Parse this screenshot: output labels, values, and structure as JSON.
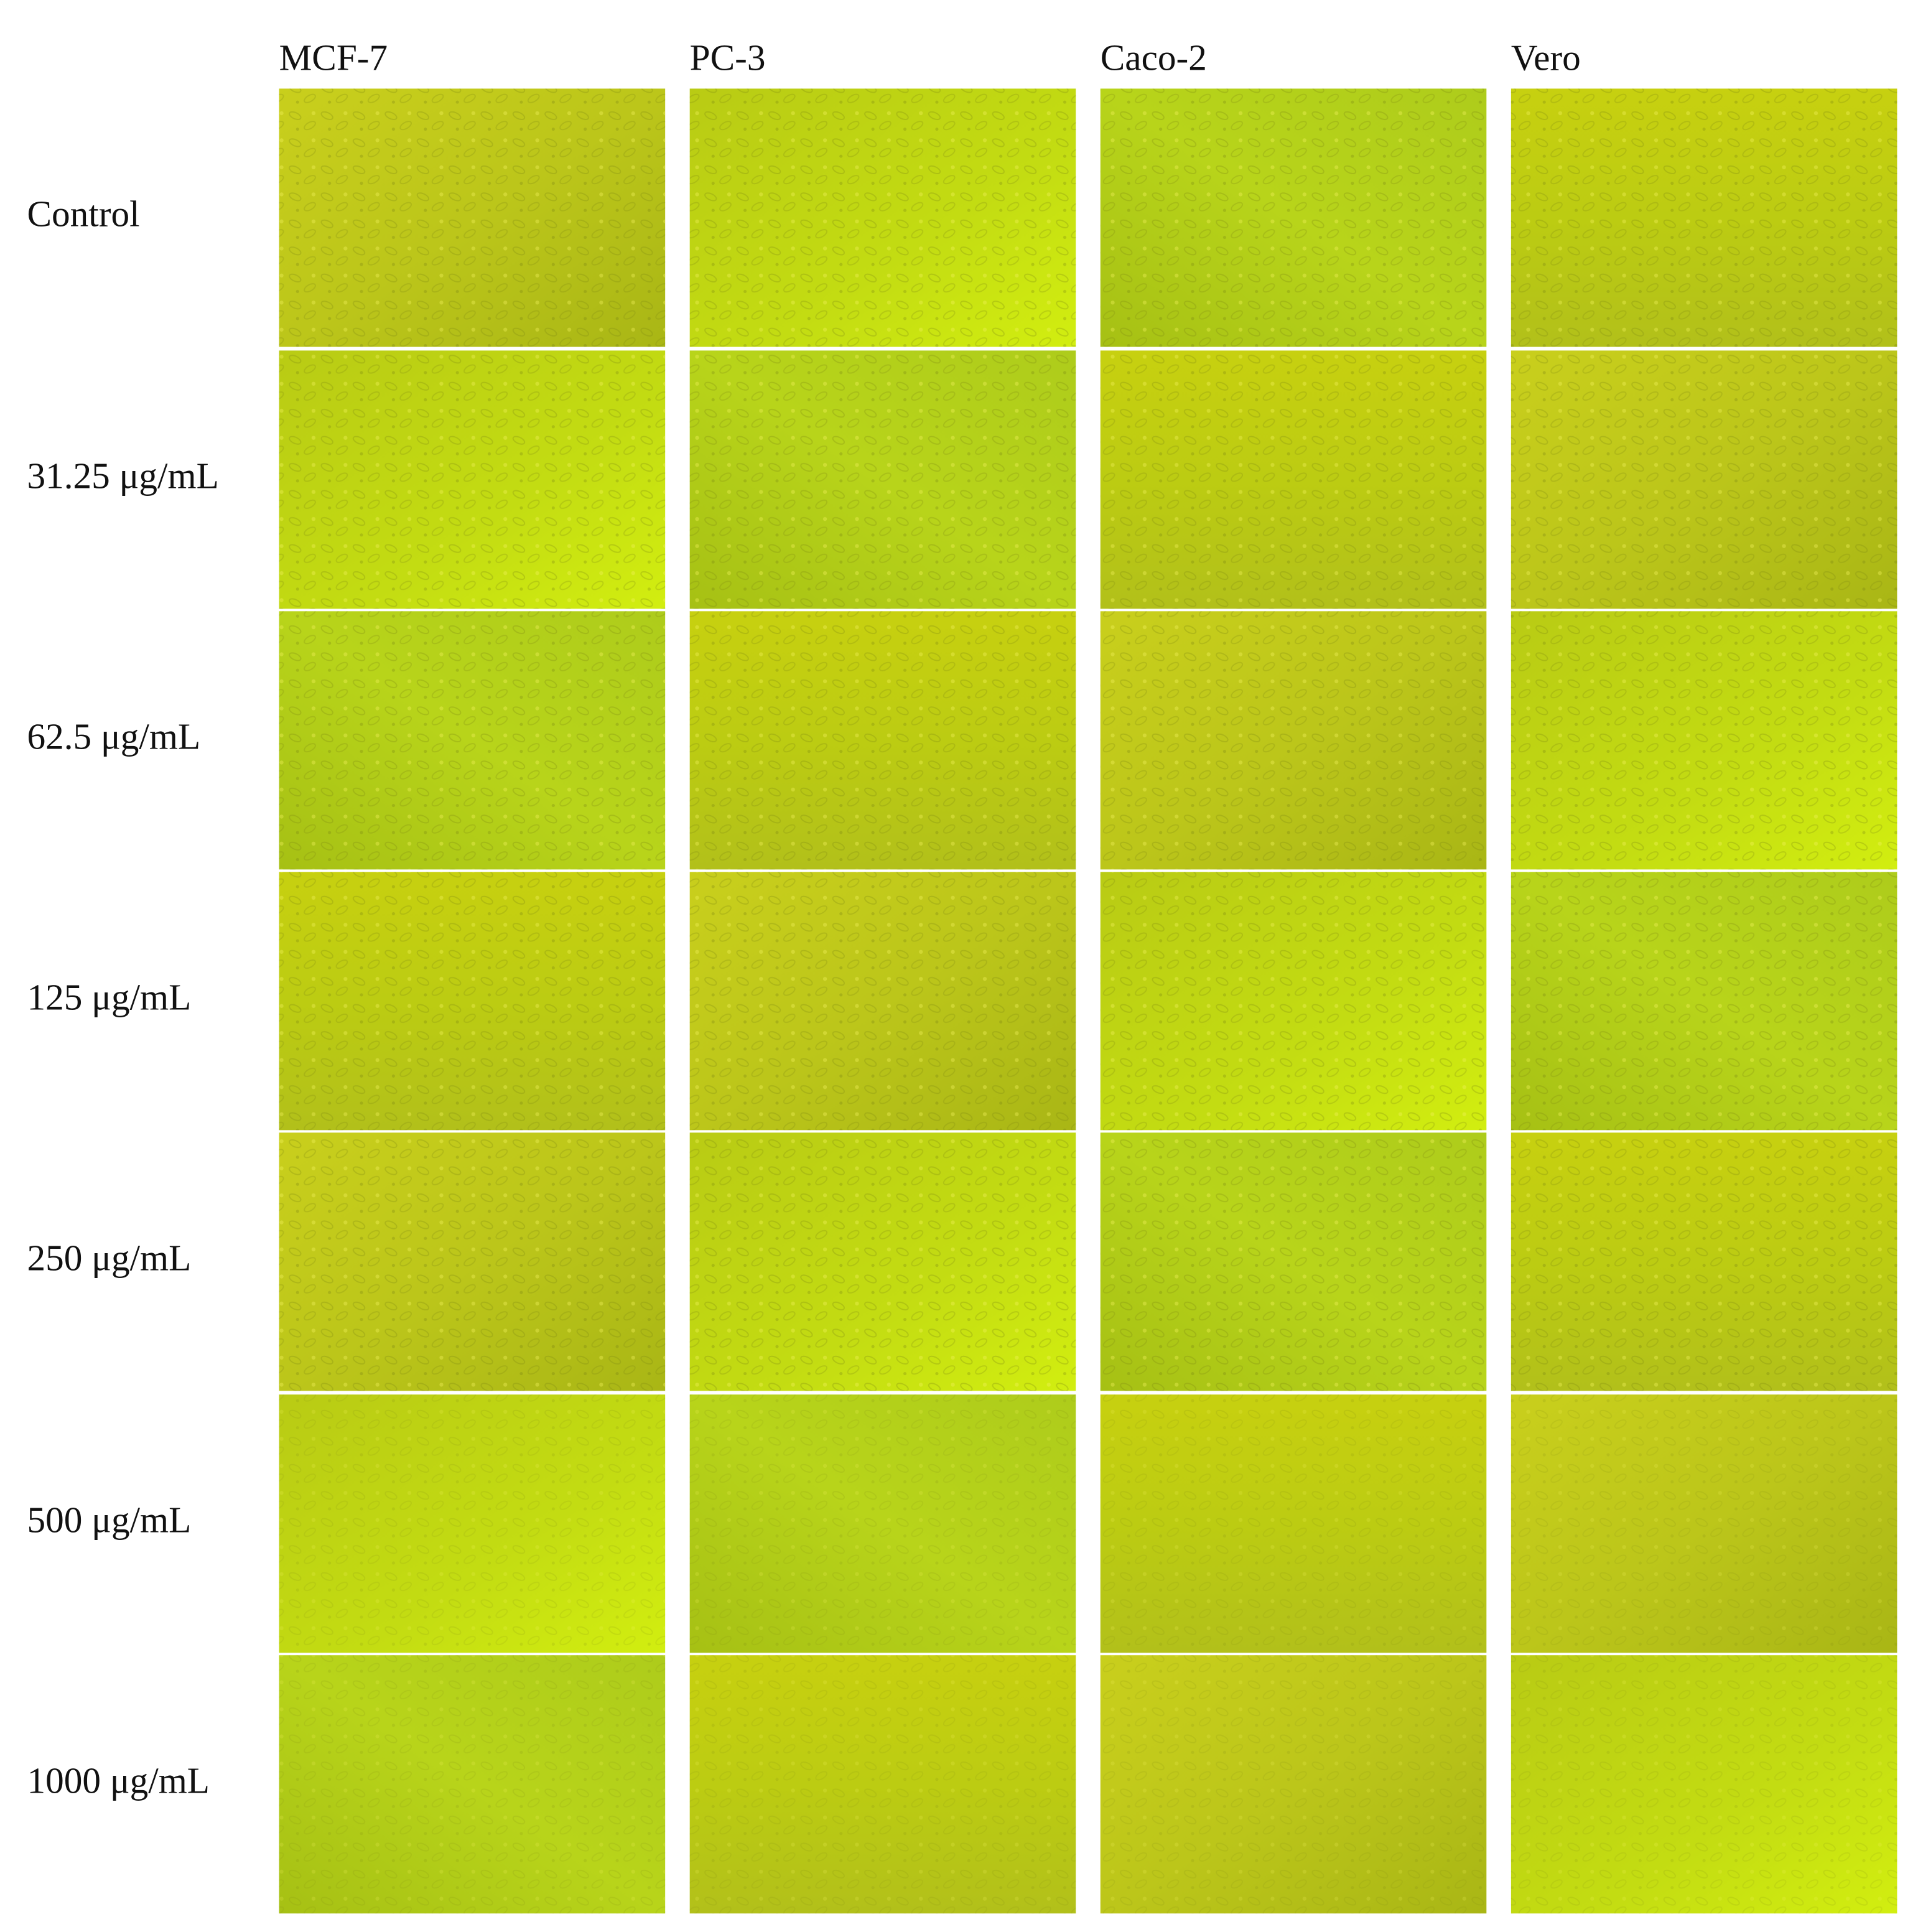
{
  "columns": [
    "MCF-7",
    "PC-3",
    "Caco-2",
    "Vero"
  ],
  "rows": [
    "Control",
    "31.25 μg/mL",
    "62.5 μg/mL",
    "125 μg/mL",
    "250 μg/mL",
    "500 μg/mL",
    "1000 μg/mL"
  ]
}
